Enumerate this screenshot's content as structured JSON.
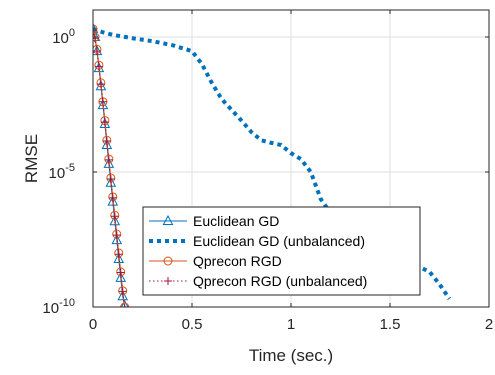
{
  "chart_data": {
    "type": "line",
    "xlabel": "Time (sec.)",
    "ylabel": "RMSE",
    "xlim": [
      0,
      2
    ],
    "ylim": [
      1e-10,
      10
    ],
    "yscale": "log",
    "grid": true,
    "legend_position": "bottom-left",
    "x_ticks": [
      "0",
      "0.5",
      "1",
      "1.5",
      "2"
    ],
    "y_ticks": [
      {
        "base": "10",
        "exp": "0",
        "value": 1
      },
      {
        "base": "10",
        "exp": "-5",
        "value": 1e-05
      },
      {
        "base": "10",
        "exp": "-10",
        "value": 1e-10
      }
    ],
    "series": [
      {
        "name": "Euclidean GD",
        "color": "#0072BD",
        "marker": "triangle",
        "line": "solid",
        "x": [
          0.0,
          0.01,
          0.02,
          0.03,
          0.04,
          0.05,
          0.06,
          0.07,
          0.08,
          0.09,
          0.1,
          0.11,
          0.12,
          0.13,
          0.14,
          0.15,
          0.16,
          0.17
        ],
        "y": [
          2.0,
          1.0,
          0.3,
          0.07,
          0.015,
          0.003,
          0.0006,
          0.0001,
          2e-05,
          4e-06,
          8e-07,
          1.5e-07,
          3e-08,
          6e-09,
          1.2e-09,
          2.5e-10,
          1.1e-10,
          5e-11
        ]
      },
      {
        "name": "Euclidean GD (unbalanced)",
        "color": "#0072BD",
        "marker": "none",
        "line": "dotted-thick",
        "x": [
          0.0,
          0.05,
          0.1,
          0.2,
          0.3,
          0.4,
          0.5,
          0.55,
          0.6,
          0.65,
          0.7,
          0.75,
          0.8,
          0.85,
          0.9,
          0.95,
          1.0,
          1.05,
          1.1,
          1.15,
          1.2,
          1.25,
          1.3,
          1.35,
          1.4,
          1.45,
          1.5,
          1.55,
          1.6,
          1.65,
          1.7,
          1.75,
          1.8
        ],
        "y": [
          2.0,
          1.5,
          1.2,
          0.9,
          0.7,
          0.5,
          0.3,
          0.1,
          0.02,
          0.005,
          0.002,
          0.0008,
          0.0003,
          0.00015,
          0.00012,
          0.0001,
          5e-05,
          3e-05,
          1e-05,
          1e-06,
          3e-07,
          1e-07,
          5e-08,
          3e-08,
          2e-08,
          1.5e-08,
          1e-08,
          6e-09,
          4e-09,
          3e-09,
          2e-09,
          7e-10,
          2e-10
        ]
      },
      {
        "name": "Qprecon RGD",
        "color": "#D95319",
        "marker": "circle",
        "line": "solid",
        "x": [
          0.0,
          0.01,
          0.02,
          0.03,
          0.04,
          0.05,
          0.06,
          0.07,
          0.08,
          0.09,
          0.1,
          0.11,
          0.12,
          0.13,
          0.14,
          0.15,
          0.16
        ],
        "y": [
          2.0,
          1.0,
          0.35,
          0.09,
          0.02,
          0.004,
          0.0008,
          0.00015,
          3e-05,
          6e-06,
          1.2e-06,
          2.5e-07,
          5e-08,
          1e-08,
          2e-09,
          4e-10,
          1e-10
        ]
      },
      {
        "name": "Qprecon RGD (unbalanced)",
        "color": "#A2142F",
        "marker": "plus",
        "line": "dotted",
        "x": [
          0.0,
          0.01,
          0.02,
          0.03,
          0.04,
          0.05,
          0.06,
          0.07,
          0.08,
          0.09,
          0.1,
          0.11,
          0.12,
          0.13,
          0.14,
          0.15,
          0.16
        ],
        "y": [
          1.8,
          0.9,
          0.3,
          0.08,
          0.018,
          0.004,
          0.0007,
          0.00014,
          2.8e-05,
          5.5e-06,
          1.1e-06,
          2.3e-07,
          4.6e-08,
          9e-09,
          1.9e-09,
          3.8e-10,
          9e-11
        ]
      }
    ]
  }
}
